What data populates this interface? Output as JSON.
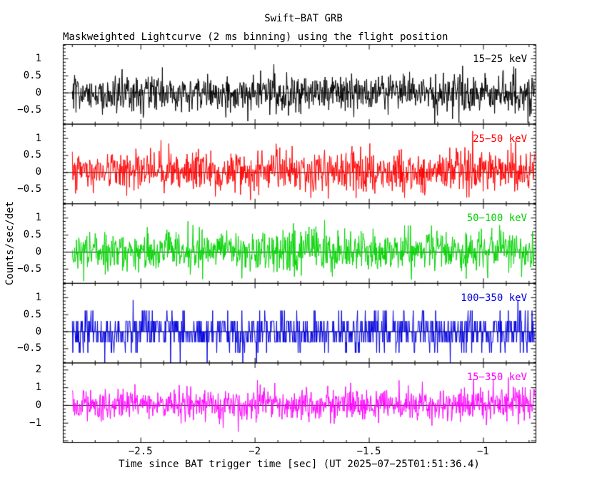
{
  "figure": {
    "title": "Swift−BAT GRB",
    "subtitle": "Maskweighted Lightcurve (2 ms binning) using the flight position",
    "xlabel": "Time since BAT trigger time [sec] (UT 2025−07−25T01:51:36.4)",
    "ylabel": "Counts/sec/det",
    "background": "#ffffff",
    "axis_color": "#000000"
  },
  "chart_data": {
    "type": "line",
    "title": "Swift−BAT GRB Maskweighted Lightcurve (2 ms binning) using the flight position",
    "xlabel": "Time since BAT trigger time [sec] (UT 2025−07−25T01:51:36.4)",
    "ylabel": "Counts/sec/det",
    "grid": false,
    "legend_position": "none",
    "x_range": [
      -2.84,
      -0.77
    ],
    "data_x_range": [
      -2.8,
      -0.775
    ],
    "bin_seconds": 0.002,
    "x_ticks": [
      -2.5,
      -2.0,
      -1.5,
      -1.0
    ],
    "x_tick_labels": [
      "−2.5",
      "−2",
      "−1.5",
      "−1"
    ],
    "x_minor_step": 0.1,
    "panels": [
      {
        "label": "15−25 keV",
        "color": "#000000",
        "ylim": [
          -0.92,
          1.42
        ],
        "yticks": [
          1,
          0.5,
          0,
          -0.5
        ],
        "ytick_labels": [
          "1",
          "0.5",
          "0",
          "−0.5"
        ],
        "y_major_step": 0.5,
        "y_minor_step": 0.1,
        "noise": {
          "type": "gaussian",
          "mean": 0.0,
          "sigma": 0.27,
          "spike_prob": 0.012,
          "spike_gain": 2.1
        },
        "seed": 101
      },
      {
        "label": "25−50 keV",
        "color": "#ff0000",
        "ylim": [
          -0.92,
          1.42
        ],
        "yticks": [
          1,
          0.5,
          0,
          -0.5
        ],
        "ytick_labels": [
          "1",
          "0.5",
          "0",
          "−0.5"
        ],
        "y_major_step": 0.5,
        "y_minor_step": 0.1,
        "noise": {
          "type": "gaussian",
          "mean": 0.02,
          "sigma": 0.3,
          "spike_prob": 0.012,
          "spike_gain": 2.0
        },
        "seed": 202
      },
      {
        "label": "50−100 keV",
        "color": "#00d300",
        "ylim": [
          -0.92,
          1.42
        ],
        "yticks": [
          1,
          0.5,
          0,
          -0.5
        ],
        "ytick_labels": [
          "1",
          "0.5",
          "0",
          "−0.5"
        ],
        "y_major_step": 0.5,
        "y_minor_step": 0.1,
        "noise": {
          "type": "gaussian",
          "mean": 0.02,
          "sigma": 0.3,
          "spike_prob": 0.012,
          "spike_gain": 2.0
        },
        "seed": 303
      },
      {
        "label": "100−350 keV",
        "color": "#0000dd",
        "ylim": [
          -0.92,
          1.42
        ],
        "yticks": [
          1,
          0.5,
          0,
          -0.5
        ],
        "ytick_labels": [
          "1",
          "0.5",
          "0",
          "−0.5"
        ],
        "y_major_step": 0.5,
        "y_minor_step": 0.1,
        "noise": {
          "type": "discrete",
          "quantum": 0.31,
          "scale": 0.95,
          "spike_prob": 0.01,
          "spike_gain": 2.0
        },
        "seed": 404
      },
      {
        "label": "15−350 keV",
        "color": "#ff00ff",
        "ylim": [
          -2.1,
          2.4
        ],
        "yticks": [
          2,
          1,
          0,
          -1
        ],
        "ytick_labels": [
          "2",
          "1",
          "0",
          "−1"
        ],
        "y_major_step": 1,
        "y_minor_step": 0.2,
        "noise": {
          "type": "gaussian",
          "mean": 0.06,
          "sigma": 0.45,
          "spike_prob": 0.015,
          "spike_gain": 2.0
        },
        "seed": 505
      }
    ]
  }
}
